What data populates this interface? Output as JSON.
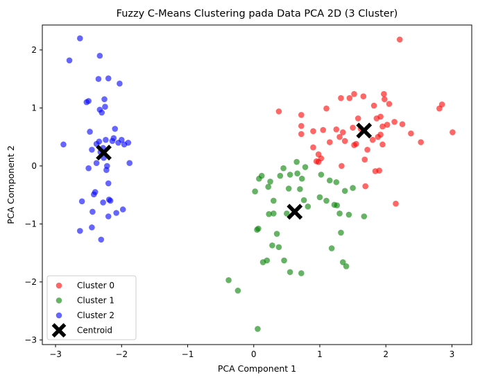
{
  "chart_data": {
    "type": "scatter",
    "title": "Fuzzy C-Means Clustering pada Data PCA 2D (3 Cluster)",
    "xlabel": "PCA Component 1",
    "ylabel": "PCA Component 2",
    "xlim": [
      -3.2,
      3.3
    ],
    "ylim": [
      -3.08,
      2.43
    ],
    "xticks": [
      -3,
      -2,
      -1,
      0,
      1,
      2,
      3
    ],
    "yticks": [
      -3,
      -2,
      -1,
      0,
      1,
      2
    ],
    "xtick_labels": [
      "−3",
      "−2",
      "−1",
      "0",
      "1",
      "2",
      "3"
    ],
    "ytick_labels": [
      "−3",
      "−2",
      "−1",
      "0",
      "1",
      "2"
    ],
    "grid": false,
    "legend_position": "lower-left",
    "series": [
      {
        "name": "Cluster 0",
        "color": "#ff0000",
        "points": [
          [
            0.38,
            0.94
          ],
          [
            0.72,
            0.88
          ],
          [
            0.72,
            0.69
          ],
          [
            0.72,
            0.55
          ],
          [
            0.9,
            0.6
          ],
          [
            0.9,
            0.32
          ],
          [
            0.95,
            0.08
          ],
          [
            0.98,
            0.07
          ],
          [
            0.98,
            0.2
          ],
          [
            1.02,
            0.13
          ],
          [
            1.05,
            0.62
          ],
          [
            1.1,
            0.99
          ],
          [
            1.15,
            0.41
          ],
          [
            1.25,
            0.63
          ],
          [
            1.3,
            0.5
          ],
          [
            1.32,
            1.17
          ],
          [
            1.33,
            0.0
          ],
          [
            1.35,
            0.58
          ],
          [
            1.38,
            0.43
          ],
          [
            1.45,
            1.17
          ],
          [
            1.5,
            0.66
          ],
          [
            1.52,
            1.24
          ],
          [
            1.52,
            0.36
          ],
          [
            1.55,
            0.38
          ],
          [
            1.58,
            0.82
          ],
          [
            1.62,
            0.64
          ],
          [
            1.66,
            1.2
          ],
          [
            1.68,
            0.11
          ],
          [
            1.69,
            -0.35
          ],
          [
            1.72,
            0.28
          ],
          [
            1.8,
            0.45
          ],
          [
            1.82,
            1.04
          ],
          [
            1.84,
            -0.09
          ],
          [
            1.86,
            0.82
          ],
          [
            1.88,
            0.5
          ],
          [
            1.9,
            -0.08
          ],
          [
            1.92,
            0.85
          ],
          [
            1.92,
            0.54
          ],
          [
            1.95,
            0.68
          ],
          [
            1.95,
            0.37
          ],
          [
            1.97,
            1.24
          ],
          [
            1.98,
            1.15
          ],
          [
            2.02,
            0.71
          ],
          [
            2.05,
            1.07
          ],
          [
            2.13,
            0.76
          ],
          [
            2.15,
            -0.65
          ],
          [
            2.21,
            2.18
          ],
          [
            2.25,
            0.72
          ],
          [
            2.38,
            0.56
          ],
          [
            2.53,
            0.41
          ],
          [
            2.81,
            0.99
          ],
          [
            2.85,
            1.06
          ],
          [
            3.01,
            0.58
          ]
        ]
      },
      {
        "name": "Cluster 1",
        "color": "#008000",
        "points": [
          [
            -0.38,
            -1.97
          ],
          [
            -0.24,
            -2.15
          ],
          [
            0.02,
            -0.44
          ],
          [
            0.05,
            -1.1
          ],
          [
            0.06,
            -2.81
          ],
          [
            0.07,
            -1.08
          ],
          [
            0.08,
            -0.22
          ],
          [
            0.12,
            -0.17
          ],
          [
            0.14,
            -1.66
          ],
          [
            0.2,
            -1.63
          ],
          [
            0.22,
            -0.36
          ],
          [
            0.23,
            -0.83
          ],
          [
            0.25,
            -0.27
          ],
          [
            0.28,
            -1.37
          ],
          [
            0.3,
            -0.6
          ],
          [
            0.3,
            -0.82
          ],
          [
            0.35,
            -1.17
          ],
          [
            0.38,
            -1.4
          ],
          [
            0.4,
            -0.17
          ],
          [
            0.45,
            -0.04
          ],
          [
            0.46,
            -1.63
          ],
          [
            0.5,
            -0.82
          ],
          [
            0.53,
            -0.39
          ],
          [
            0.55,
            -1.83
          ],
          [
            0.55,
            -0.15
          ],
          [
            0.65,
            0.07
          ],
          [
            0.66,
            -0.13
          ],
          [
            0.7,
            -0.4
          ],
          [
            0.72,
            -1.85
          ],
          [
            0.73,
            -0.22
          ],
          [
            0.76,
            -0.59
          ],
          [
            0.78,
            -0.02
          ],
          [
            0.82,
            -0.7
          ],
          [
            1.0,
            -0.54
          ],
          [
            1.02,
            -0.15
          ],
          [
            1.1,
            -0.6
          ],
          [
            1.15,
            -0.25
          ],
          [
            1.18,
            -1.42
          ],
          [
            1.22,
            -0.67
          ],
          [
            1.25,
            -0.28
          ],
          [
            1.26,
            -0.68
          ],
          [
            1.3,
            -0.82
          ],
          [
            1.32,
            -1.15
          ],
          [
            1.35,
            -1.66
          ],
          [
            1.38,
            -0.43
          ],
          [
            1.4,
            -1.73
          ],
          [
            1.44,
            -0.84
          ],
          [
            1.5,
            -0.38
          ],
          [
            1.67,
            -0.87
          ]
        ]
      },
      {
        "name": "Cluster 2",
        "color": "#0000ff",
        "points": [
          [
            -2.88,
            0.37
          ],
          [
            -2.79,
            1.82
          ],
          [
            -2.63,
            2.2
          ],
          [
            -2.63,
            -1.12
          ],
          [
            -2.6,
            -0.61
          ],
          [
            -2.53,
            1.1
          ],
          [
            -2.5,
            -0.04
          ],
          [
            -2.5,
            1.12
          ],
          [
            -2.48,
            0.59
          ],
          [
            -2.45,
            -1.06
          ],
          [
            -2.45,
            0.28
          ],
          [
            -2.44,
            -0.79
          ],
          [
            -2.42,
            -0.49
          ],
          [
            -2.4,
            -0.45
          ],
          [
            -2.38,
            0.38
          ],
          [
            -2.38,
            0.05
          ],
          [
            -2.35,
            1.5
          ],
          [
            -2.34,
            0.42
          ],
          [
            -2.33,
            0.97
          ],
          [
            -2.33,
            1.9
          ],
          [
            -2.32,
            0.24
          ],
          [
            -2.31,
            -1.27
          ],
          [
            -2.3,
            0.92
          ],
          [
            -2.28,
            -0.63
          ],
          [
            -2.28,
            0.31
          ],
          [
            -2.27,
            0.14
          ],
          [
            -2.26,
            1.15
          ],
          [
            -2.25,
            1.02
          ],
          [
            -2.24,
            0.45
          ],
          [
            -2.23,
            -0.07
          ],
          [
            -2.22,
            0.0
          ],
          [
            -2.2,
            1.51
          ],
          [
            -2.2,
            -0.87
          ],
          [
            -2.2,
            -0.3
          ],
          [
            -2.19,
            -0.58
          ],
          [
            -2.17,
            -0.6
          ],
          [
            -2.14,
            0.43
          ],
          [
            -2.12,
            0.48
          ],
          [
            -2.1,
            0.64
          ],
          [
            -2.08,
            -0.81
          ],
          [
            -2.05,
            0.4
          ],
          [
            -2.03,
            1.42
          ],
          [
            -2.0,
            0.45
          ],
          [
            -1.98,
            -0.75
          ],
          [
            -1.96,
            0.37
          ],
          [
            -1.9,
            0.4
          ],
          [
            -1.88,
            0.05
          ]
        ]
      }
    ],
    "centroids": {
      "name": "Centroid",
      "color": "#000000",
      "points": [
        [
          1.67,
          0.61
        ],
        [
          0.62,
          -0.79
        ],
        [
          -2.27,
          0.23
        ]
      ]
    }
  }
}
